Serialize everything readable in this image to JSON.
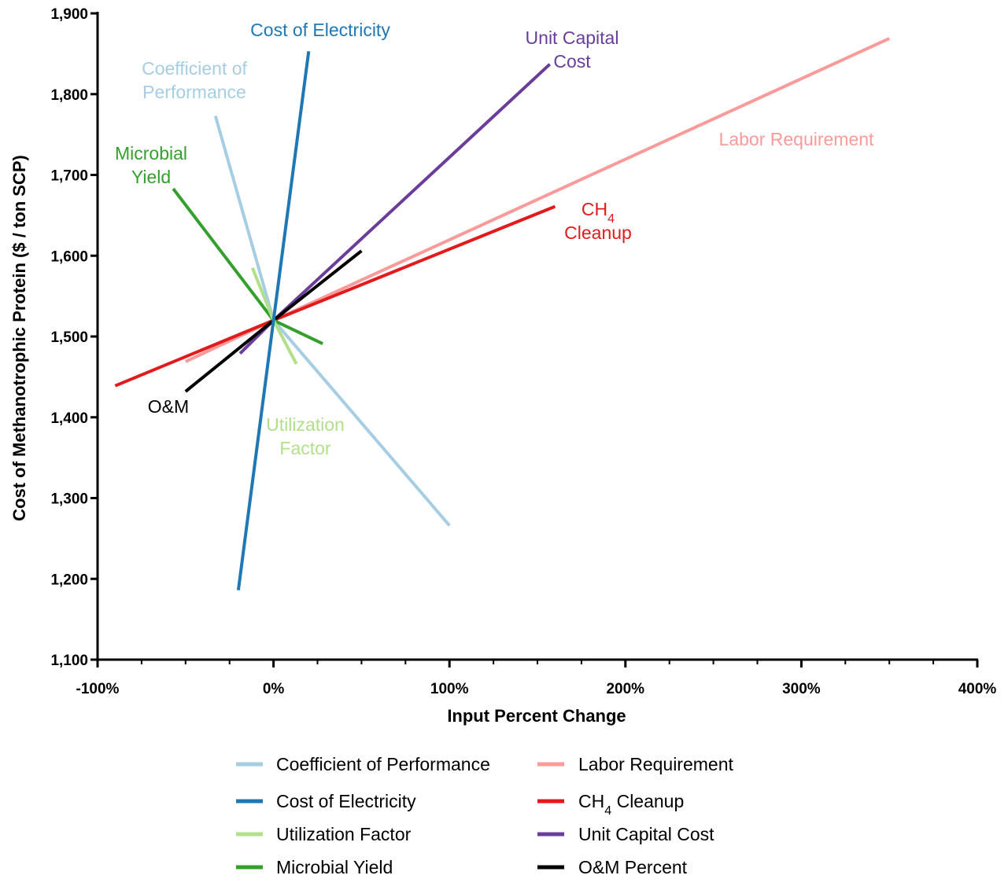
{
  "chart_data": {
    "type": "line",
    "title": "",
    "xlabel": "Input Percent Change",
    "ylabel": "Cost of  Methanotrophic Protein  ($ / ton  SCP)",
    "xlim": [
      -100,
      400
    ],
    "ylim": [
      1100,
      1900
    ],
    "x_ticks": [
      -100,
      0,
      100,
      200,
      300,
      400
    ],
    "x_tick_labels": [
      "-100%",
      "0%",
      "100%",
      "200%",
      "300%",
      "400%"
    ],
    "y_ticks": [
      1100,
      1200,
      1300,
      1400,
      1500,
      1600,
      1700,
      1800,
      1900
    ],
    "y_tick_labels": [
      "1,100",
      "1,200",
      "1,300",
      "1,400",
      "1,500",
      "1,600",
      "1,700",
      "1,800",
      "1,900"
    ],
    "grid": false,
    "legend_position": "bottom",
    "series": [
      {
        "name": "Coefficient of Performance",
        "color": "#a6cee3",
        "x": [
          -33,
          0,
          100
        ],
        "y": [
          1773,
          1520,
          1266
        ],
        "annotation": [
          "Coefficient of",
          "Performance"
        ]
      },
      {
        "name": "Cost of  Electricity",
        "color": "#1f78b4",
        "x": [
          -20,
          0,
          20
        ],
        "y": [
          1186,
          1520,
          1853
        ],
        "annotation": [
          "Cost of Electricity"
        ]
      },
      {
        "name": "Utilization Factor",
        "color": "#b2df8a",
        "x": [
          -12,
          0,
          13
        ],
        "y": [
          1585,
          1520,
          1466
        ],
        "annotation": [
          "Utilization",
          "Factor"
        ]
      },
      {
        "name": "Microbial  Yield",
        "color": "#33a02c",
        "x": [
          -57,
          0,
          28
        ],
        "y": [
          1683,
          1520,
          1491
        ],
        "annotation": [
          "Microbial",
          "Yield"
        ]
      },
      {
        "name": "Labor Requirement",
        "color": "#fb9a99",
        "x": [
          -50,
          0,
          350
        ],
        "y": [
          1469,
          1520,
          1869
        ],
        "annotation": [
          "Labor Requirement"
        ]
      },
      {
        "name": "CH4 Cleanup",
        "color": "#e31a1c",
        "x": [
          -90,
          0,
          160
        ],
        "y": [
          1439,
          1520,
          1661
        ],
        "annotation": [
          "CH4",
          "Cleanup"
        ]
      },
      {
        "name": "Unit Capital Cost",
        "color": "#6a3d9a",
        "x": [
          -19,
          0,
          157
        ],
        "y": [
          1479,
          1520,
          1837
        ],
        "annotation": [
          "Unit Capital",
          "Cost"
        ]
      },
      {
        "name": "O&M Percent",
        "color": "#000000",
        "x": [
          -50,
          0,
          50
        ],
        "y": [
          1432,
          1520,
          1606
        ],
        "annotation": [
          "O&M"
        ]
      }
    ]
  }
}
